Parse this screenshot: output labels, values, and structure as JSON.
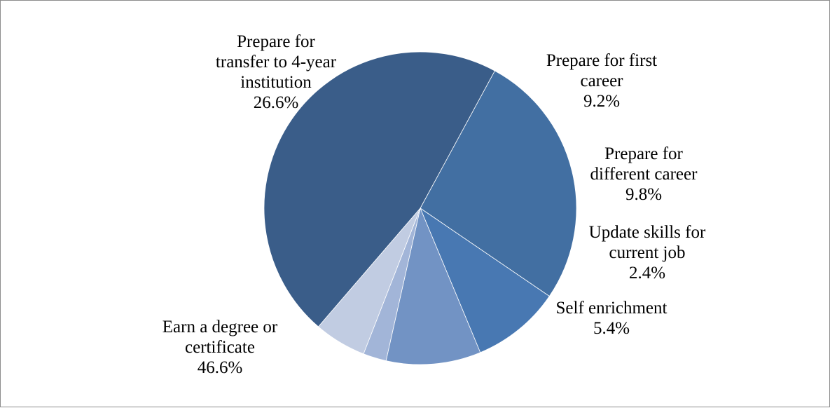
{
  "chart_data": {
    "type": "pie",
    "title": "",
    "slices": [
      {
        "label_lines": [
          "Prepare for",
          "transfer to 4-year",
          "institution"
        ],
        "label": "Prepare for transfer to 4-year institution",
        "value": 26.6,
        "value_text": "26.6%",
        "color": "#426fa2"
      },
      {
        "label_lines": [
          "Prepare for first",
          "career"
        ],
        "label": "Prepare for first career",
        "value": 9.2,
        "value_text": "9.2%",
        "color": "#4878b2"
      },
      {
        "label_lines": [
          "Prepare for",
          "different career"
        ],
        "label": "Prepare for different career",
        "value": 9.8,
        "value_text": "9.8%",
        "color": "#7293c4"
      },
      {
        "label_lines": [
          "Update skills for",
          "current job"
        ],
        "label": "Update skills for current job",
        "value": 2.4,
        "value_text": "2.4%",
        "color": "#a2b5d8"
      },
      {
        "label_lines": [
          "Self enrichment"
        ],
        "label": "Self enrichment",
        "value": 5.4,
        "value_text": "5.4%",
        "color": "#c1cce2"
      },
      {
        "label_lines": [
          "Earn a degree or",
          "certificate"
        ],
        "label": "Earn a degree or certificate",
        "value": 46.6,
        "value_text": "46.6%",
        "color": "#3a5d89"
      }
    ],
    "legend": "none",
    "data_labels": "outside"
  }
}
